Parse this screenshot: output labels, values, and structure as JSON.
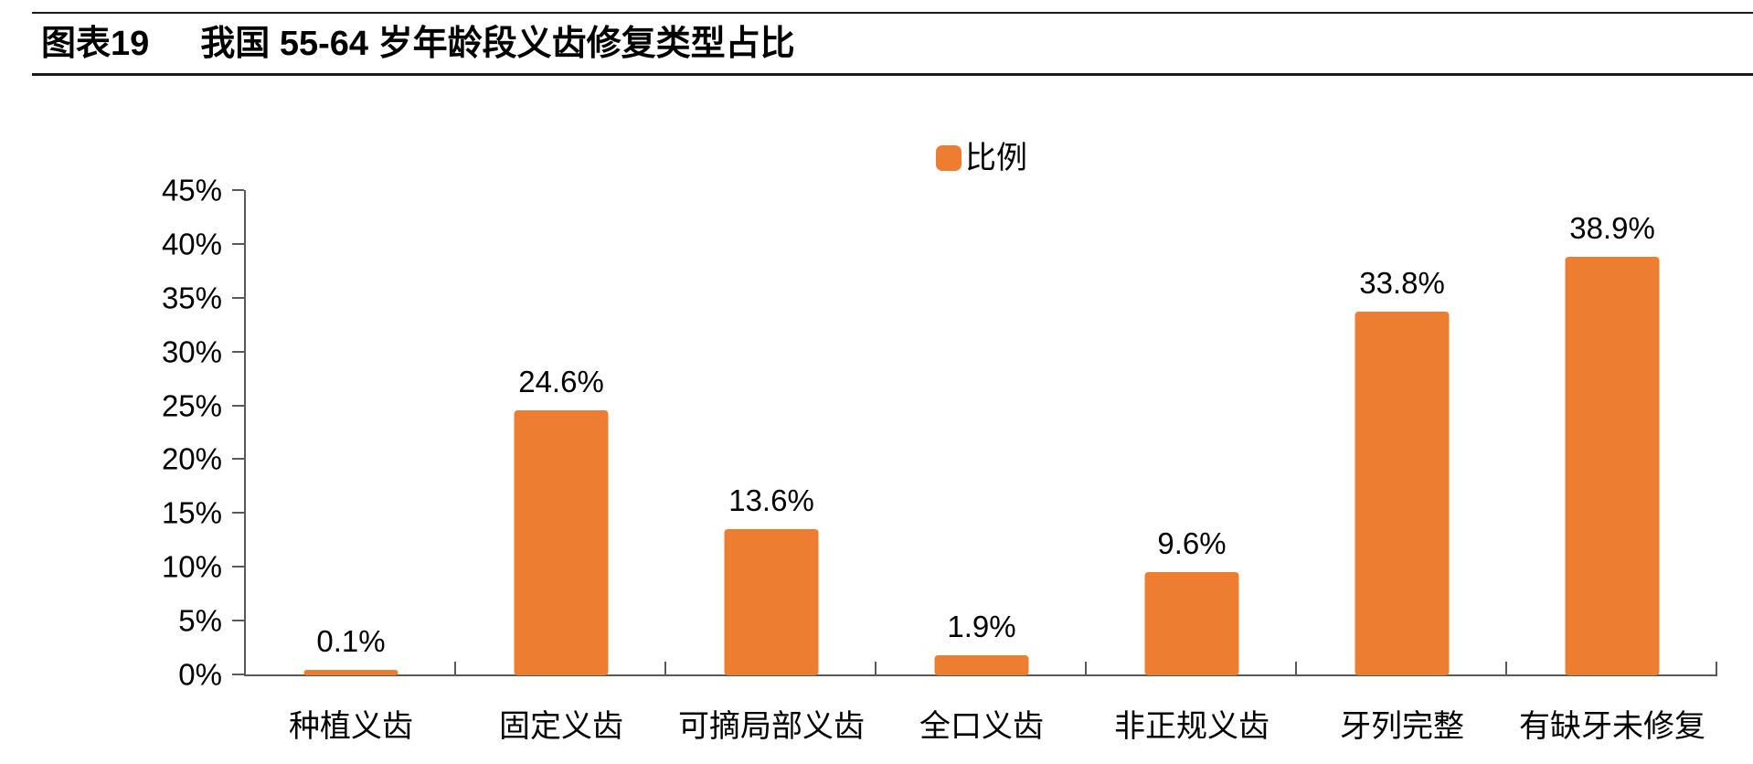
{
  "title": {
    "figure_label": "图表19",
    "text": "我国 55-64 岁年龄段义齿修复类型占比"
  },
  "legend": {
    "label": "比例"
  },
  "colors": {
    "bar": "#ED7D31",
    "axis": "#595959",
    "rule": "#1a1a1a",
    "text": "#000000",
    "background": "#ffffff"
  },
  "chart_data": {
    "type": "bar",
    "title": "我国 55-64 岁年龄段义齿修复类型占比",
    "series_name": "比例",
    "categories": [
      "种植义齿",
      "固定义齿",
      "可摘局部义齿",
      "全口义齿",
      "非正规义齿",
      "牙列完整",
      "有缺牙未修复"
    ],
    "values": [
      0.1,
      24.6,
      13.6,
      1.9,
      9.6,
      33.8,
      38.9
    ],
    "value_labels": [
      "0.1%",
      "24.6%",
      "13.6%",
      "1.9%",
      "9.6%",
      "33.8%",
      "38.9%"
    ],
    "xlabel": "",
    "ylabel": "",
    "ylim": [
      0,
      45
    ],
    "ytick_step": 5,
    "ytick_labels": [
      "0%",
      "5%",
      "10%",
      "15%",
      "20%",
      "25%",
      "30%",
      "35%",
      "40%",
      "45%"
    ],
    "grid": false,
    "legend_position": "top-center",
    "bar_color": "#ED7D31"
  }
}
